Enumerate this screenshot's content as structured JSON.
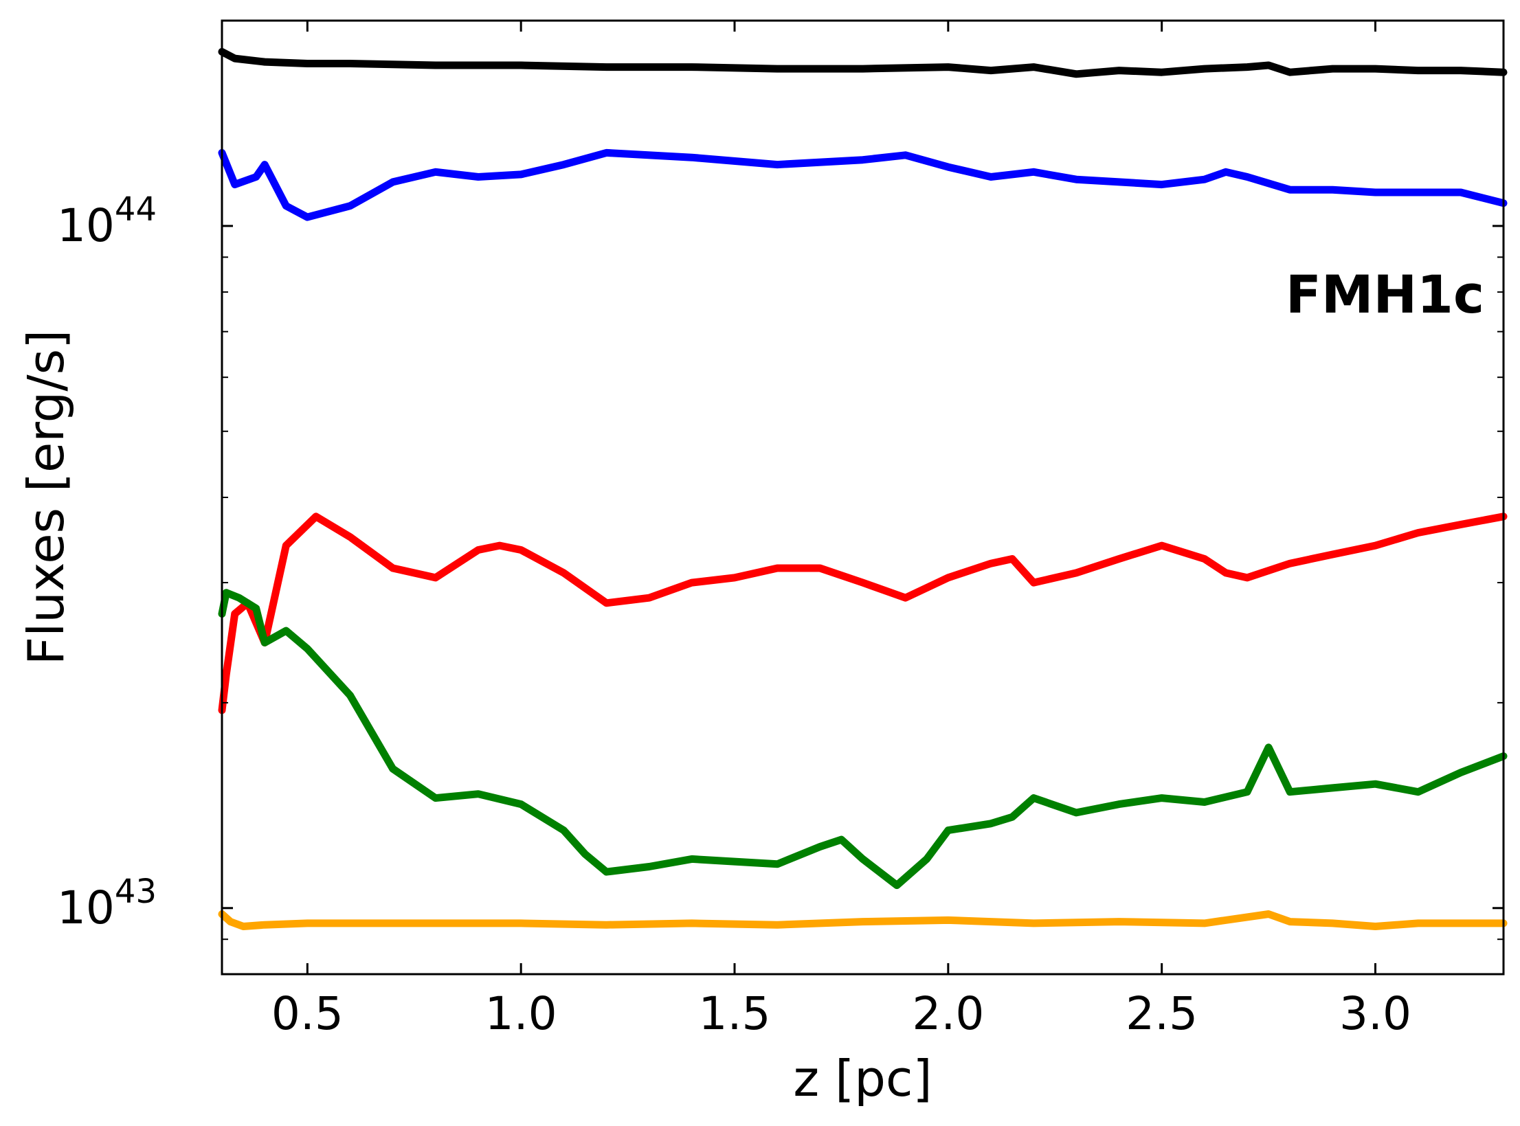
{
  "chart_data": {
    "type": "line",
    "xlabel": "z [pc]",
    "ylabel": "Fluxes [erg/s]",
    "annotation": "FMH1c",
    "xlim": [
      0.3,
      3.3
    ],
    "ylim": [
      8000000000000000000000000000000000000000000,
      200000000000000000000000000000000000000000000
    ],
    "yscale": "log",
    "grid": false,
    "x_ticks": [
      {
        "value": 0.5,
        "label": "0.5"
      },
      {
        "value": 1.0,
        "label": "1.0"
      },
      {
        "value": 1.5,
        "label": "1.5"
      },
      {
        "value": 2.0,
        "label": "2.0"
      },
      {
        "value": 2.5,
        "label": "2.5"
      },
      {
        "value": 3.0,
        "label": "3.0"
      }
    ],
    "y_ticks": [
      {
        "value": 10000000000000000000000000000000000000000000,
        "base": "10",
        "exponent": "43"
      },
      {
        "value": 100000000000000000000000000000000000000000000,
        "base": "10",
        "exponent": "44"
      }
    ],
    "series": [
      {
        "color": "#000000",
        "x": [
          0.3,
          0.33,
          0.4,
          0.5,
          0.6,
          0.8,
          1.0,
          1.2,
          1.4,
          1.6,
          1.8,
          2.0,
          2.1,
          2.2,
          2.3,
          2.4,
          2.5,
          2.6,
          2.7,
          2.75,
          2.8,
          2.9,
          3.0,
          3.1,
          3.2,
          3.3
        ],
        "y": [
          1.8e+44,
          1.76e+44,
          1.74e+44,
          1.73e+44,
          1.73e+44,
          1.72e+44,
          1.72e+44,
          1.71e+44,
          1.71e+44,
          1.7e+44,
          1.7e+44,
          1.71e+44,
          1.69e+44,
          1.71e+44,
          1.67e+44,
          1.69e+44,
          1.68e+44,
          1.7e+44,
          1.71e+44,
          1.72e+44,
          1.68e+44,
          1.7e+44,
          1.7e+44,
          1.69e+44,
          1.69e+44,
          1.68e+44
        ]
      },
      {
        "color": "#0000ff",
        "x": [
          0.3,
          0.33,
          0.38,
          0.4,
          0.45,
          0.5,
          0.6,
          0.7,
          0.8,
          0.9,
          1.0,
          1.1,
          1.2,
          1.4,
          1.6,
          1.8,
          1.9,
          2.0,
          2.1,
          2.2,
          2.3,
          2.4,
          2.5,
          2.6,
          2.65,
          2.7,
          2.8,
          2.9,
          3.0,
          3.1,
          3.2,
          3.3
        ],
        "y": [
          1.28e+44,
          1.15e+44,
          1.18e+44,
          1.23e+44,
          1.07e+44,
          1.03e+44,
          1.07e+44,
          1.16e+44,
          1.2e+44,
          1.18e+44,
          1.19e+44,
          1.23e+44,
          1.28e+44,
          1.26e+44,
          1.23e+44,
          1.25e+44,
          1.27e+44,
          1.22e+44,
          1.18e+44,
          1.2e+44,
          1.17e+44,
          1.16e+44,
          1.15e+44,
          1.17e+44,
          1.2e+44,
          1.18e+44,
          1.13e+44,
          1.13e+44,
          1.12e+44,
          1.12e+44,
          1.12e+44,
          1.08e+44
        ]
      },
      {
        "color": "#ff0000",
        "x": [
          0.3,
          0.31,
          0.33,
          0.36,
          0.4,
          0.45,
          0.52,
          0.6,
          0.7,
          0.8,
          0.9,
          0.95,
          1.0,
          1.1,
          1.2,
          1.3,
          1.4,
          1.5,
          1.6,
          1.7,
          1.8,
          1.9,
          2.0,
          2.1,
          2.15,
          2.2,
          2.3,
          2.4,
          2.5,
          2.6,
          2.65,
          2.7,
          2.8,
          2.9,
          3.0,
          3.1,
          3.2,
          3.3
        ],
        "y": [
          1.95e+43,
          2.2e+43,
          2.7e+43,
          2.8e+43,
          2.45e+43,
          3.4e+43,
          3.75e+43,
          3.5e+43,
          3.15e+43,
          3.05e+43,
          3.35e+43,
          3.4e+43,
          3.35e+43,
          3.1e+43,
          2.8e+43,
          2.85e+43,
          3e+43,
          3.05e+43,
          3.15e+43,
          3.15e+43,
          3e+43,
          2.85e+43,
          3.05e+43,
          3.2e+43,
          3.25e+43,
          3e+43,
          3.1e+43,
          3.25e+43,
          3.4e+43,
          3.25e+43,
          3.1e+43,
          3.05e+43,
          3.2e+43,
          3.3e+43,
          3.4e+43,
          3.55e+43,
          3.65e+43,
          3.75e+43
        ]
      },
      {
        "color": "#008000",
        "x": [
          0.3,
          0.31,
          0.34,
          0.38,
          0.4,
          0.45,
          0.5,
          0.6,
          0.7,
          0.8,
          0.9,
          1.0,
          1.1,
          1.15,
          1.2,
          1.3,
          1.4,
          1.5,
          1.6,
          1.7,
          1.75,
          1.8,
          1.88,
          1.95,
          2.0,
          2.1,
          2.15,
          2.2,
          2.3,
          2.4,
          2.5,
          2.6,
          2.7,
          2.75,
          2.8,
          2.9,
          3.0,
          3.1,
          3.2,
          3.3
        ],
        "y": [
          2.7e+43,
          2.9e+43,
          2.85e+43,
          2.75e+43,
          2.45e+43,
          2.55e+43,
          2.4e+43,
          2.05e+43,
          1.6e+43,
          1.45e+43,
          1.47e+43,
          1.42e+43,
          1.3e+43,
          1.2e+43,
          1.13e+43,
          1.15e+43,
          1.18e+43,
          1.17e+43,
          1.16e+43,
          1.23e+43,
          1.26e+43,
          1.18e+43,
          1.08e+43,
          1.18e+43,
          1.3e+43,
          1.33e+43,
          1.36e+43,
          1.45e+43,
          1.38e+43,
          1.42e+43,
          1.45e+43,
          1.43e+43,
          1.48e+43,
          1.72e+43,
          1.48e+43,
          1.5e+43,
          1.52e+43,
          1.48e+43,
          1.58e+43,
          1.67e+43
        ]
      },
      {
        "color": "#ffa500",
        "x": [
          0.3,
          0.32,
          0.35,
          0.4,
          0.5,
          0.7,
          1.0,
          1.2,
          1.4,
          1.6,
          1.8,
          2.0,
          2.2,
          2.4,
          2.6,
          2.7,
          2.75,
          2.8,
          2.9,
          3.0,
          3.1,
          3.2,
          3.3
        ],
        "y": [
          9.8e+42,
          9.55e+42,
          9.4e+42,
          9.45e+42,
          9.5e+42,
          9.5e+42,
          9.5e+42,
          9.45e+42,
          9.5e+42,
          9.45e+42,
          9.55e+42,
          9.6e+42,
          9.5e+42,
          9.55e+42,
          9.5e+42,
          9.7e+42,
          9.8e+42,
          9.55e+42,
          9.5e+42,
          9.4e+42,
          9.5e+42,
          9.5e+42,
          9.5e+42
        ]
      }
    ]
  }
}
